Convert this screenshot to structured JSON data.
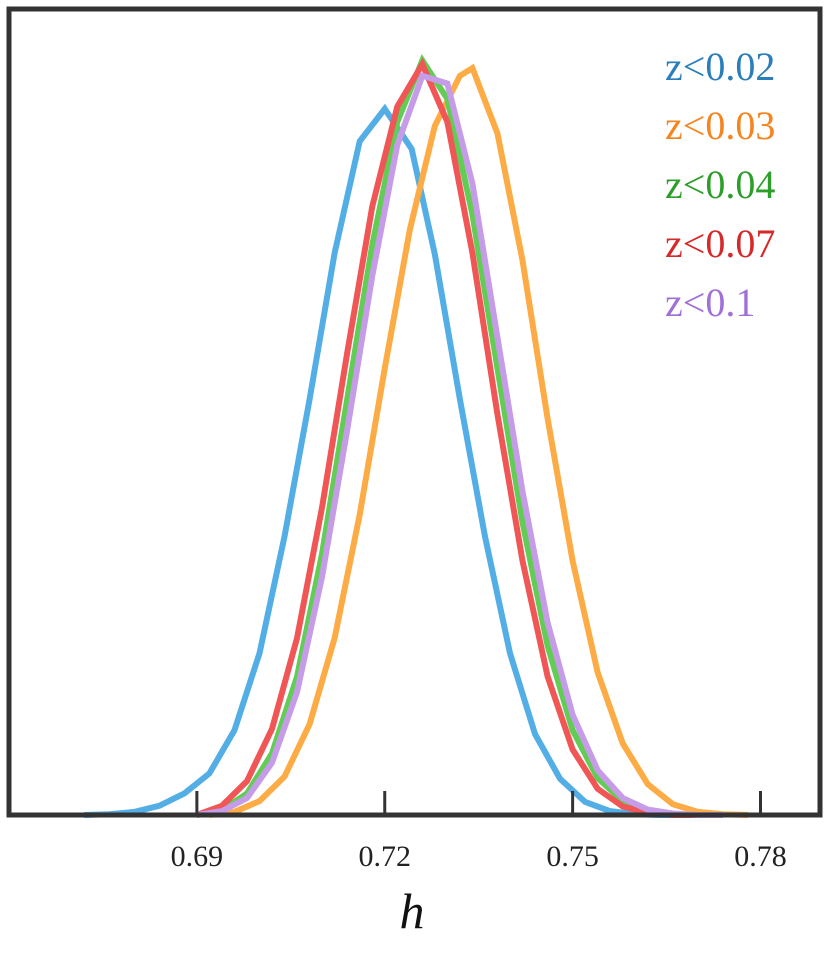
{
  "chart_data": {
    "type": "line",
    "xlabel": "h",
    "ylabel": "",
    "xlim": [
      0.66,
      0.7895
    ],
    "ylim": [
      0,
      1.0
    ],
    "xticks": [
      0.69,
      0.72,
      0.75,
      0.78
    ],
    "xtick_labels": [
      "0.69",
      "0.72",
      "0.75",
      "0.78"
    ],
    "grid": false,
    "legend_position": "top-right",
    "series": [
      {
        "name": "z<0.02",
        "color": "#53aee6",
        "label_color": "#2a7fba",
        "x": [
          0.672,
          0.676,
          0.68,
          0.684,
          0.688,
          0.692,
          0.696,
          0.7,
          0.704,
          0.708,
          0.712,
          0.716,
          0.72,
          0.7243,
          0.728,
          0.732,
          0.736,
          0.74,
          0.744,
          0.748,
          0.752,
          0.756,
          0.76,
          0.764,
          0.768
        ],
        "y": [
          0.0,
          0.001,
          0.004,
          0.012,
          0.028,
          0.054,
          0.11,
          0.21,
          0.362,
          0.54,
          0.73,
          0.875,
          0.917,
          0.865,
          0.728,
          0.54,
          0.362,
          0.21,
          0.105,
          0.047,
          0.017,
          0.005,
          0.001,
          0.0,
          0.0
        ]
      },
      {
        "name": "z<0.03",
        "color": "#fdac45",
        "label_color": "#f4851f",
        "x": [
          0.692,
          0.696,
          0.7,
          0.704,
          0.708,
          0.712,
          0.716,
          0.72,
          0.724,
          0.728,
          0.732,
          0.734,
          0.738,
          0.742,
          0.746,
          0.75,
          0.754,
          0.758,
          0.762,
          0.766,
          0.77,
          0.774,
          0.778
        ],
        "y": [
          0.0,
          0.004,
          0.018,
          0.05,
          0.118,
          0.23,
          0.39,
          0.58,
          0.76,
          0.895,
          0.96,
          0.97,
          0.885,
          0.72,
          0.515,
          0.33,
          0.185,
          0.093,
          0.04,
          0.014,
          0.004,
          0.001,
          0.0
        ]
      },
      {
        "name": "z<0.04",
        "color": "#62cd55",
        "label_color": "#2e9e2b",
        "x": [
          0.69,
          0.694,
          0.698,
          0.702,
          0.706,
          0.71,
          0.714,
          0.718,
          0.722,
          0.726,
          0.73,
          0.734,
          0.738,
          0.742,
          0.746,
          0.75,
          0.754,
          0.758,
          0.762,
          0.766,
          0.77,
          0.774
        ],
        "y": [
          0.0,
          0.006,
          0.028,
          0.08,
          0.18,
          0.34,
          0.54,
          0.74,
          0.9,
          0.98,
          0.93,
          0.78,
          0.58,
          0.38,
          0.22,
          0.11,
          0.048,
          0.018,
          0.005,
          0.001,
          0.0,
          0.0
        ]
      },
      {
        "name": "z<0.07",
        "color": "#f05656",
        "label_color": "#d62a2a",
        "x": [
          0.69,
          0.694,
          0.698,
          0.702,
          0.706,
          0.71,
          0.714,
          0.718,
          0.722,
          0.726,
          0.73,
          0.734,
          0.738,
          0.742,
          0.746,
          0.75,
          0.754,
          0.758,
          0.762,
          0.766,
          0.77
        ],
        "y": [
          0.0,
          0.012,
          0.044,
          0.112,
          0.23,
          0.4,
          0.6,
          0.79,
          0.92,
          0.975,
          0.9,
          0.73,
          0.52,
          0.33,
          0.18,
          0.085,
          0.034,
          0.011,
          0.003,
          0.0,
          0.0
        ]
      },
      {
        "name": "z<0.1",
        "color": "#c69be8",
        "label_color": "#a070d8",
        "x": [
          0.69,
          0.694,
          0.698,
          0.702,
          0.706,
          0.71,
          0.714,
          0.718,
          0.722,
          0.726,
          0.73,
          0.734,
          0.738,
          0.742,
          0.746,
          0.75,
          0.754,
          0.758,
          0.762,
          0.766,
          0.77,
          0.774
        ],
        "y": [
          0.0,
          0.005,
          0.022,
          0.068,
          0.16,
          0.31,
          0.5,
          0.7,
          0.87,
          0.96,
          0.95,
          0.82,
          0.62,
          0.42,
          0.25,
          0.13,
          0.058,
          0.022,
          0.007,
          0.002,
          0.0,
          0.0
        ]
      }
    ]
  }
}
